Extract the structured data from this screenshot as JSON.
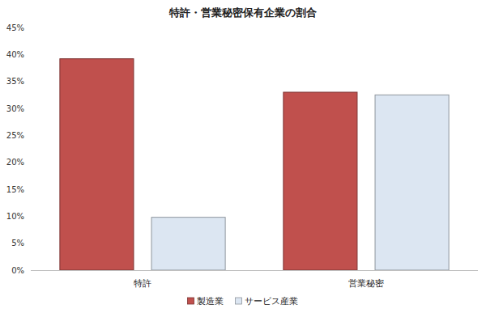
{
  "chart_data": {
    "type": "bar",
    "title": "特許・営業秘密保有企業の割合",
    "categories": [
      "特許",
      "営業秘密"
    ],
    "series": [
      {
        "name": "製造業",
        "color": "#c0504d",
        "values": [
          39.2,
          33.0
        ]
      },
      {
        "name": "サービス産業",
        "color": "#dce6f2",
        "values": [
          9.8,
          32.5
        ]
      }
    ],
    "ylim": [
      0,
      45
    ],
    "yticks": [
      {
        "value": 0,
        "label": "0%"
      },
      {
        "value": 5,
        "label": "5%"
      },
      {
        "value": 10,
        "label": "10%"
      },
      {
        "value": 15,
        "label": "15%"
      },
      {
        "value": 20,
        "label": "20%"
      },
      {
        "value": 25,
        "label": "25%"
      },
      {
        "value": 30,
        "label": "30%"
      },
      {
        "value": 35,
        "label": "35%"
      },
      {
        "value": 40,
        "label": "40%"
      },
      {
        "value": 45,
        "label": "45%"
      }
    ],
    "grid": false,
    "legend": "bottom"
  }
}
